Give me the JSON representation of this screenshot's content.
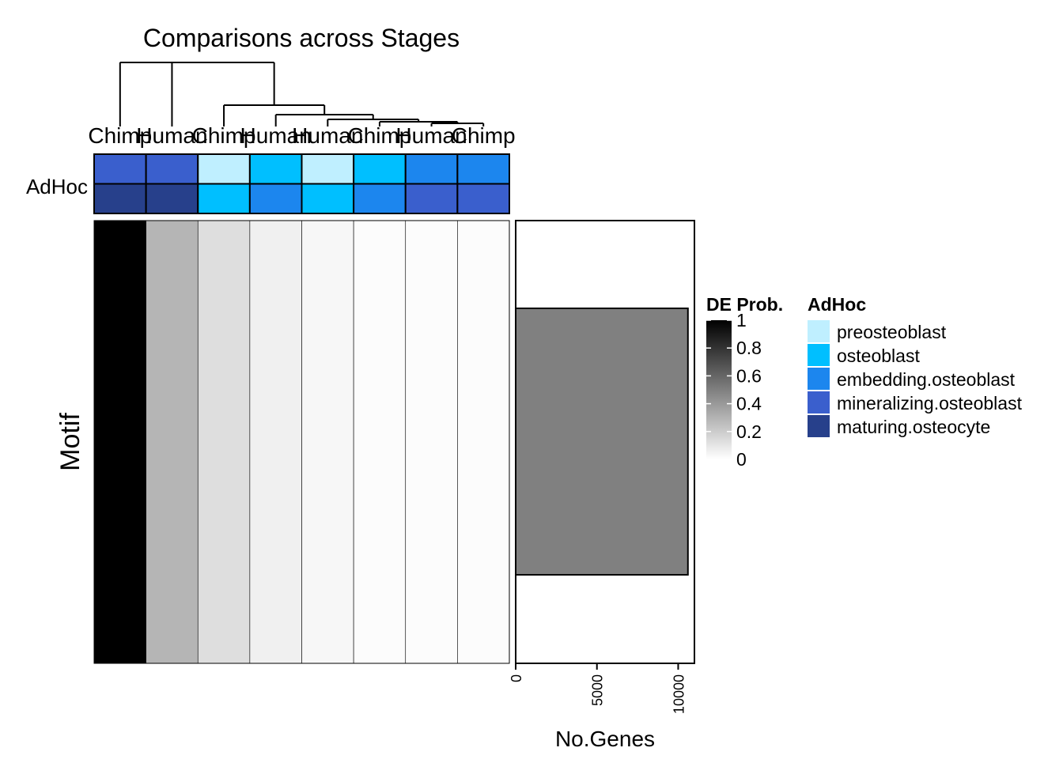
{
  "chart_data": {
    "type": "heatmap",
    "title": "Comparisons across Stages",
    "columns": [
      "Chimp",
      "Human",
      "Chimp",
      "Human",
      "Human",
      "Chimp",
      "Human",
      "Chimp"
    ],
    "row_label": "Motif",
    "annotation": {
      "label": "AdHoc",
      "legend_title": "AdHoc",
      "rows": [
        [
          "mineralizing.osteoblast",
          "mineralizing.osteoblast",
          "preosteoblast",
          "osteoblast",
          "preosteoblast",
          "osteoblast",
          "embedding.osteoblast",
          "embedding.osteoblast"
        ],
        [
          "maturing.osteocyte",
          "maturing.osteocyte",
          "osteoblast",
          "embedding.osteoblast",
          "osteoblast",
          "embedding.osteoblast",
          "mineralizing.osteoblast",
          "mineralizing.osteoblast"
        ]
      ],
      "levels": [
        {
          "name": "preosteoblast",
          "color": "#BFEFFF"
        },
        {
          "name": "osteoblast",
          "color": "#00BFFF"
        },
        {
          "name": "embedding.osteoblast",
          "color": "#1C86EE"
        },
        {
          "name": "mineralizing.osteoblast",
          "color": "#3A5FCD"
        },
        {
          "name": "maturing.osteocyte",
          "color": "#27408B"
        }
      ]
    },
    "values": [
      1.0,
      0.29,
      0.13,
      0.06,
      0.03,
      0.01,
      0.01,
      0.01
    ],
    "color_scale": {
      "title": "DE Prob.",
      "min": 0,
      "max": 1,
      "low_color": "#ffffff",
      "high_color": "#000000",
      "ticks": [
        "0",
        "0.2",
        "0.4",
        "0.6",
        "0.8",
        "1"
      ]
    },
    "side_bar": {
      "type": "bar",
      "xlabel": "No.Genes",
      "value": 10600,
      "xlim": [
        0,
        11000
      ],
      "ticks": [
        0,
        5000,
        10000
      ],
      "tick_labels": [
        "0",
        "5000",
        "10000"
      ],
      "fill": "#808080"
    }
  }
}
